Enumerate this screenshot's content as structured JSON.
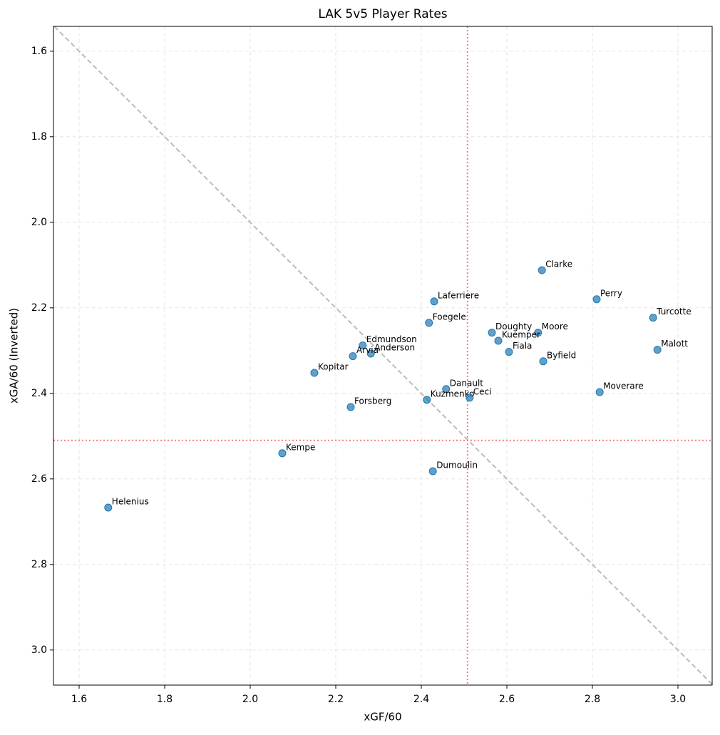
{
  "chart_data": {
    "type": "scatter",
    "title": "LAK 5v5 Player Rates",
    "xlabel": "xGF/60",
    "ylabel": "xGA/60 (Inverted)",
    "labels": [
      "Clarke",
      "Laferriere",
      "Perry",
      "Turcotte",
      "Foegele",
      "Doughty",
      "Moore",
      "Kuemper",
      "Edmundson",
      "Anderson",
      "Arvia",
      "Fiala",
      "Malott",
      "Byfield",
      "Kopitar",
      "Danault",
      "Kuzmenko",
      "Ceci",
      "Moverare",
      "Forsberg",
      "Kempe",
      "Dumoulin",
      "Helenius"
    ],
    "x": [
      2.682,
      2.43,
      2.81,
      2.942,
      2.418,
      2.565,
      2.673,
      2.58,
      2.263,
      2.282,
      2.24,
      2.605,
      2.952,
      2.685,
      2.15,
      2.458,
      2.413,
      2.513,
      2.817,
      2.235,
      2.075,
      2.427,
      1.668
    ],
    "y": [
      2.112,
      2.185,
      2.18,
      2.223,
      2.235,
      2.258,
      2.258,
      2.277,
      2.288,
      2.307,
      2.313,
      2.303,
      2.298,
      2.325,
      2.352,
      2.39,
      2.415,
      2.41,
      2.397,
      2.432,
      2.54,
      2.582,
      2.667
    ],
    "color": "#1f77b4",
    "xlim": [
      1.54,
      3.08
    ],
    "ylim": [
      1.542,
      3.082
    ],
    "y_inverted": true,
    "xticks": [
      1.6,
      1.8,
      {
        "value": 2,
        "label": "2.0"
      },
      2.2,
      2.4,
      2.6,
      2.8,
      {
        "value": 3,
        "label": "3.0"
      }
    ],
    "yticks": [
      1.6,
      1.8,
      {
        "value": 2,
        "label": "2.0"
      },
      2.2,
      2.4,
      2.6,
      2.8,
      {
        "value": 3,
        "label": "3.0"
      }
    ],
    "grid": true,
    "diagonal": true,
    "vline_x": 2.508,
    "hline_y": 2.51,
    "ref_color": "#f08080"
  }
}
